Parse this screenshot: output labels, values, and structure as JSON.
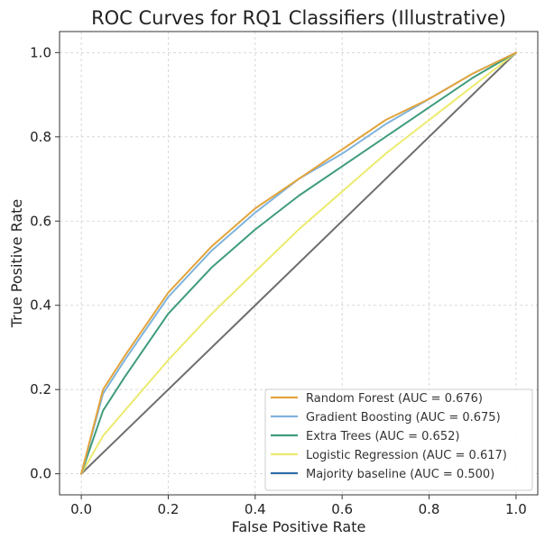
{
  "chart_data": {
    "type": "line",
    "title": "ROC Curves for RQ1 Classifiers (Illustrative)",
    "xlabel": "False Positive Rate",
    "ylabel": "True Positive Rate",
    "xlim": [
      -0.05,
      1.05
    ],
    "ylim": [
      -0.05,
      1.05
    ],
    "xticks": [
      0.0,
      0.2,
      0.4,
      0.6,
      0.8,
      1.0
    ],
    "yticks": [
      0.0,
      0.2,
      0.4,
      0.6,
      0.8,
      1.0
    ],
    "x_tick_labels": [
      "0.0",
      "0.2",
      "0.4",
      "0.6",
      "0.8",
      "1.0"
    ],
    "y_tick_labels": [
      "0.0",
      "0.2",
      "0.4",
      "0.6",
      "0.8",
      "1.0"
    ],
    "grid": true,
    "legend_position": "lower-right",
    "series": [
      {
        "name": "Random Forest (AUC = 0.676)",
        "color": "#e3a43c",
        "auc": 0.676,
        "x": [
          0,
          0.05,
          0.1,
          0.2,
          0.3,
          0.4,
          0.5,
          0.6,
          0.7,
          0.8,
          0.9,
          1.0
        ],
        "y": [
          0,
          0.2,
          0.28,
          0.43,
          0.54,
          0.63,
          0.7,
          0.77,
          0.84,
          0.89,
          0.95,
          1.0
        ]
      },
      {
        "name": "Gradient Boosting (AUC = 0.675)",
        "color": "#7fb3dc",
        "auc": 0.675,
        "x": [
          0,
          0.05,
          0.1,
          0.2,
          0.3,
          0.4,
          0.5,
          0.6,
          0.7,
          0.8,
          0.9,
          1.0
        ],
        "y": [
          0,
          0.19,
          0.27,
          0.42,
          0.53,
          0.62,
          0.7,
          0.76,
          0.83,
          0.89,
          0.95,
          1.0
        ]
      },
      {
        "name": "Extra Trees (AUC = 0.652)",
        "color": "#3f9c7a",
        "auc": 0.652,
        "x": [
          0,
          0.05,
          0.1,
          0.2,
          0.3,
          0.4,
          0.5,
          0.6,
          0.7,
          0.8,
          0.9,
          1.0
        ],
        "y": [
          0,
          0.15,
          0.23,
          0.38,
          0.49,
          0.58,
          0.66,
          0.73,
          0.8,
          0.87,
          0.94,
          1.0
        ]
      },
      {
        "name": "Logistic Regression (AUC = 0.617)",
        "color": "#ecea6e",
        "auc": 0.617,
        "x": [
          0,
          0.05,
          0.1,
          0.2,
          0.3,
          0.4,
          0.5,
          0.6,
          0.7,
          0.8,
          0.9,
          1.0
        ],
        "y": [
          0,
          0.09,
          0.15,
          0.27,
          0.38,
          0.48,
          0.58,
          0.67,
          0.76,
          0.84,
          0.92,
          1.0
        ]
      },
      {
        "name": "Majority baseline (AUC = 0.500)",
        "color": "#2f6ea8",
        "line_color": "#6e6e6e",
        "auc": 0.5,
        "x": [
          0,
          1.0
        ],
        "y": [
          0,
          1.0
        ]
      }
    ]
  }
}
